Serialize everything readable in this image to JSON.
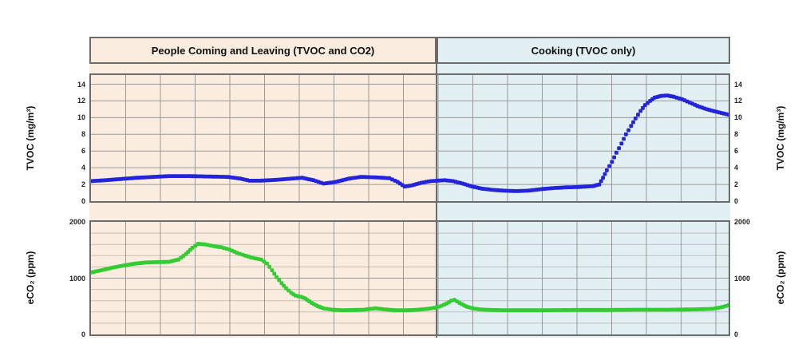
{
  "figure": {
    "background": "#ffffff",
    "frame_color": "#6b6b6b"
  },
  "chart_data": {
    "type": "line",
    "x_axis": {
      "tick_labels_visible": false,
      "description": "time (unlabeled)"
    },
    "grid": {
      "on": true,
      "vertical_color": "#9a9a9a",
      "major_color": "#9a9a9a",
      "minor_color": "rgba(115,110,104,0.35)"
    },
    "regions": [
      {
        "label": "People Coming and Leaving (TVOC and CO2)",
        "bg": "#faecdf",
        "x_start_pct": 0,
        "x_end_pct": 54.2
      },
      {
        "label": "Cooking (TVOC only)",
        "bg": "#e2eff3",
        "x_start_pct": 54.2,
        "x_end_pct": 100
      }
    ],
    "panels": [
      {
        "id": "tvoc",
        "ylabel": "TVOC (mg/m³)",
        "yticks": [
          14,
          12,
          10,
          8,
          6,
          4,
          2,
          0
        ],
        "ylim": [
          0,
          15.1
        ],
        "minor_step": 0,
        "line_color": "#2424db",
        "series_name": "TVOC",
        "points": [
          [
            0,
            2.4
          ],
          [
            2.2,
            2.5
          ],
          [
            4.7,
            2.65
          ],
          [
            7.2,
            2.8
          ],
          [
            9.7,
            2.9
          ],
          [
            12.2,
            3.0
          ],
          [
            15.3,
            3.0
          ],
          [
            18.4,
            2.95
          ],
          [
            21.5,
            2.9
          ],
          [
            23.4,
            2.7
          ],
          [
            24.9,
            2.45
          ],
          [
            26.5,
            2.45
          ],
          [
            29,
            2.55
          ],
          [
            31.5,
            2.7
          ],
          [
            33.1,
            2.8
          ],
          [
            34.9,
            2.5
          ],
          [
            36.5,
            2.1
          ],
          [
            38.4,
            2.3
          ],
          [
            40.5,
            2.7
          ],
          [
            42.3,
            2.9
          ],
          [
            44.6,
            2.85
          ],
          [
            46.8,
            2.75
          ],
          [
            48.1,
            2.3
          ],
          [
            49.2,
            1.75
          ],
          [
            50.4,
            1.9
          ],
          [
            51.8,
            2.2
          ],
          [
            53.3,
            2.4
          ],
          [
            54.2,
            2.45
          ],
          [
            55.5,
            2.5
          ],
          [
            56.8,
            2.4
          ],
          [
            58.3,
            2.1
          ],
          [
            59.8,
            1.75
          ],
          [
            61.3,
            1.5
          ],
          [
            63,
            1.35
          ],
          [
            64.8,
            1.25
          ],
          [
            66.7,
            1.2
          ],
          [
            68.5,
            1.25
          ],
          [
            70.2,
            1.4
          ],
          [
            72.2,
            1.55
          ],
          [
            74.5,
            1.65
          ],
          [
            76.7,
            1.7
          ],
          [
            78.7,
            1.8
          ],
          [
            79.7,
            2.0
          ],
          [
            80.3,
            2.8
          ],
          [
            80.9,
            3.7
          ],
          [
            81.7,
            4.7
          ],
          [
            82.4,
            5.8
          ],
          [
            83.2,
            6.9
          ],
          [
            83.9,
            8.0
          ],
          [
            84.7,
            9.0
          ],
          [
            85.4,
            9.9
          ],
          [
            86.2,
            10.8
          ],
          [
            86.9,
            11.5
          ],
          [
            87.7,
            12.0
          ],
          [
            88.4,
            12.4
          ],
          [
            89.4,
            12.6
          ],
          [
            90.4,
            12.65
          ],
          [
            91.4,
            12.5
          ],
          [
            92.7,
            12.2
          ],
          [
            93.9,
            11.8
          ],
          [
            95.1,
            11.4
          ],
          [
            96.6,
            11.0
          ],
          [
            98.1,
            10.7
          ],
          [
            100,
            10.35
          ]
        ]
      },
      {
        "id": "eco2",
        "ylabel": "eCO₂ (ppm)",
        "yticks": [
          2000,
          1000,
          0
        ],
        "ylim": [
          0,
          2000
        ],
        "minor_step": 200,
        "line_color": "#33cc33",
        "series_name": "eCO2",
        "points": [
          [
            0,
            1100
          ],
          [
            1.6,
            1140
          ],
          [
            3.5,
            1190
          ],
          [
            5.4,
            1230
          ],
          [
            7,
            1260
          ],
          [
            8.7,
            1280
          ],
          [
            10.5,
            1285
          ],
          [
            12.2,
            1290
          ],
          [
            13.7,
            1330
          ],
          [
            14.9,
            1430
          ],
          [
            15.9,
            1540
          ],
          [
            16.8,
            1610
          ],
          [
            17.9,
            1600
          ],
          [
            19.2,
            1570
          ],
          [
            20.4,
            1550
          ],
          [
            21.7,
            1510
          ],
          [
            22.9,
            1450
          ],
          [
            24.2,
            1400
          ],
          [
            25.4,
            1360
          ],
          [
            26.7,
            1330
          ],
          [
            27.6,
            1260
          ],
          [
            28.4,
            1140
          ],
          [
            29.1,
            1020
          ],
          [
            29.9,
            910
          ],
          [
            30.6,
            820
          ],
          [
            31.4,
            740
          ],
          [
            32.1,
            690
          ],
          [
            32.9,
            670
          ],
          [
            33.6,
            640
          ],
          [
            34.6,
            560
          ],
          [
            35.6,
            500
          ],
          [
            36.6,
            460
          ],
          [
            37.9,
            440
          ],
          [
            39.4,
            430
          ],
          [
            41.1,
            435
          ],
          [
            42.8,
            440
          ],
          [
            44.6,
            465
          ],
          [
            46.1,
            445
          ],
          [
            47.8,
            430
          ],
          [
            49.6,
            430
          ],
          [
            51.3,
            440
          ],
          [
            52.8,
            455
          ],
          [
            54.2,
            480
          ],
          [
            55,
            510
          ],
          [
            55.8,
            550
          ],
          [
            56.5,
            600
          ],
          [
            57,
            615
          ],
          [
            57.8,
            560
          ],
          [
            58.8,
            500
          ],
          [
            59.8,
            465
          ],
          [
            61,
            445
          ],
          [
            62.8,
            435
          ],
          [
            65.8,
            430
          ],
          [
            70.7,
            430
          ],
          [
            75.7,
            435
          ],
          [
            80.7,
            435
          ],
          [
            85.7,
            440
          ],
          [
            90.7,
            440
          ],
          [
            94.4,
            445
          ],
          [
            97.5,
            455
          ],
          [
            99.1,
            490
          ],
          [
            100,
            520
          ]
        ]
      }
    ]
  }
}
